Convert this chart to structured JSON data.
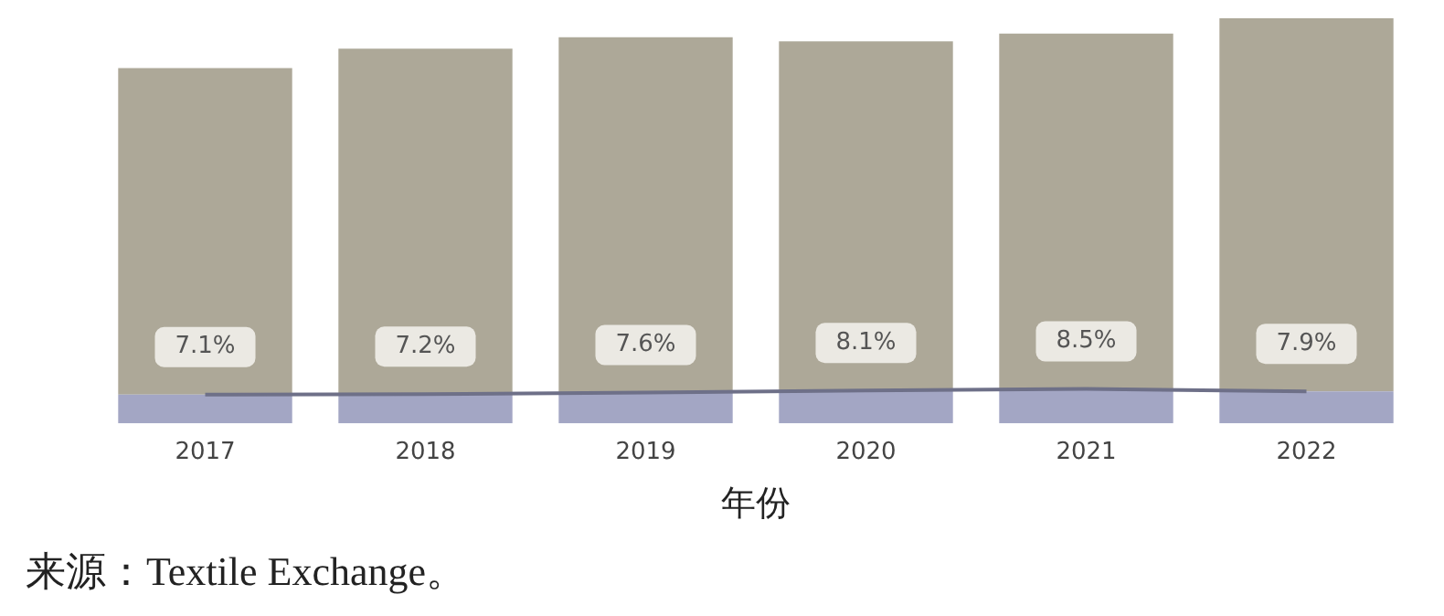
{
  "chart_data": {
    "type": "bar",
    "stacked": true,
    "categories": [
      "2017",
      "2018",
      "2019",
      "2020",
      "2021",
      "2022"
    ],
    "xlabel": "年份",
    "ylim": [
      0,
      100
    ],
    "tick_labels": "x",
    "series": [
      {
        "color": "#a3a6c4",
        "values": [
          7.1,
          7.2,
          7.6,
          8.1,
          8.5,
          7.9
        ],
        "value_labels": [
          "7.1%",
          "7.2%",
          "7.6%",
          "8.1%",
          "8.5%",
          "7.9%"
        ]
      },
      {
        "color": "#ada898",
        "values": [
          80.6,
          85.3,
          87.7,
          86.2,
          87.7,
          92.1
        ]
      },
      {
        "type": "line",
        "color": "#6e7088",
        "values": [
          7.1,
          7.2,
          7.6,
          8.1,
          8.5,
          7.9
        ]
      }
    ],
    "legend": false,
    "grid": false,
    "annotations": [
      "来源：Textile Exchange。"
    ]
  }
}
